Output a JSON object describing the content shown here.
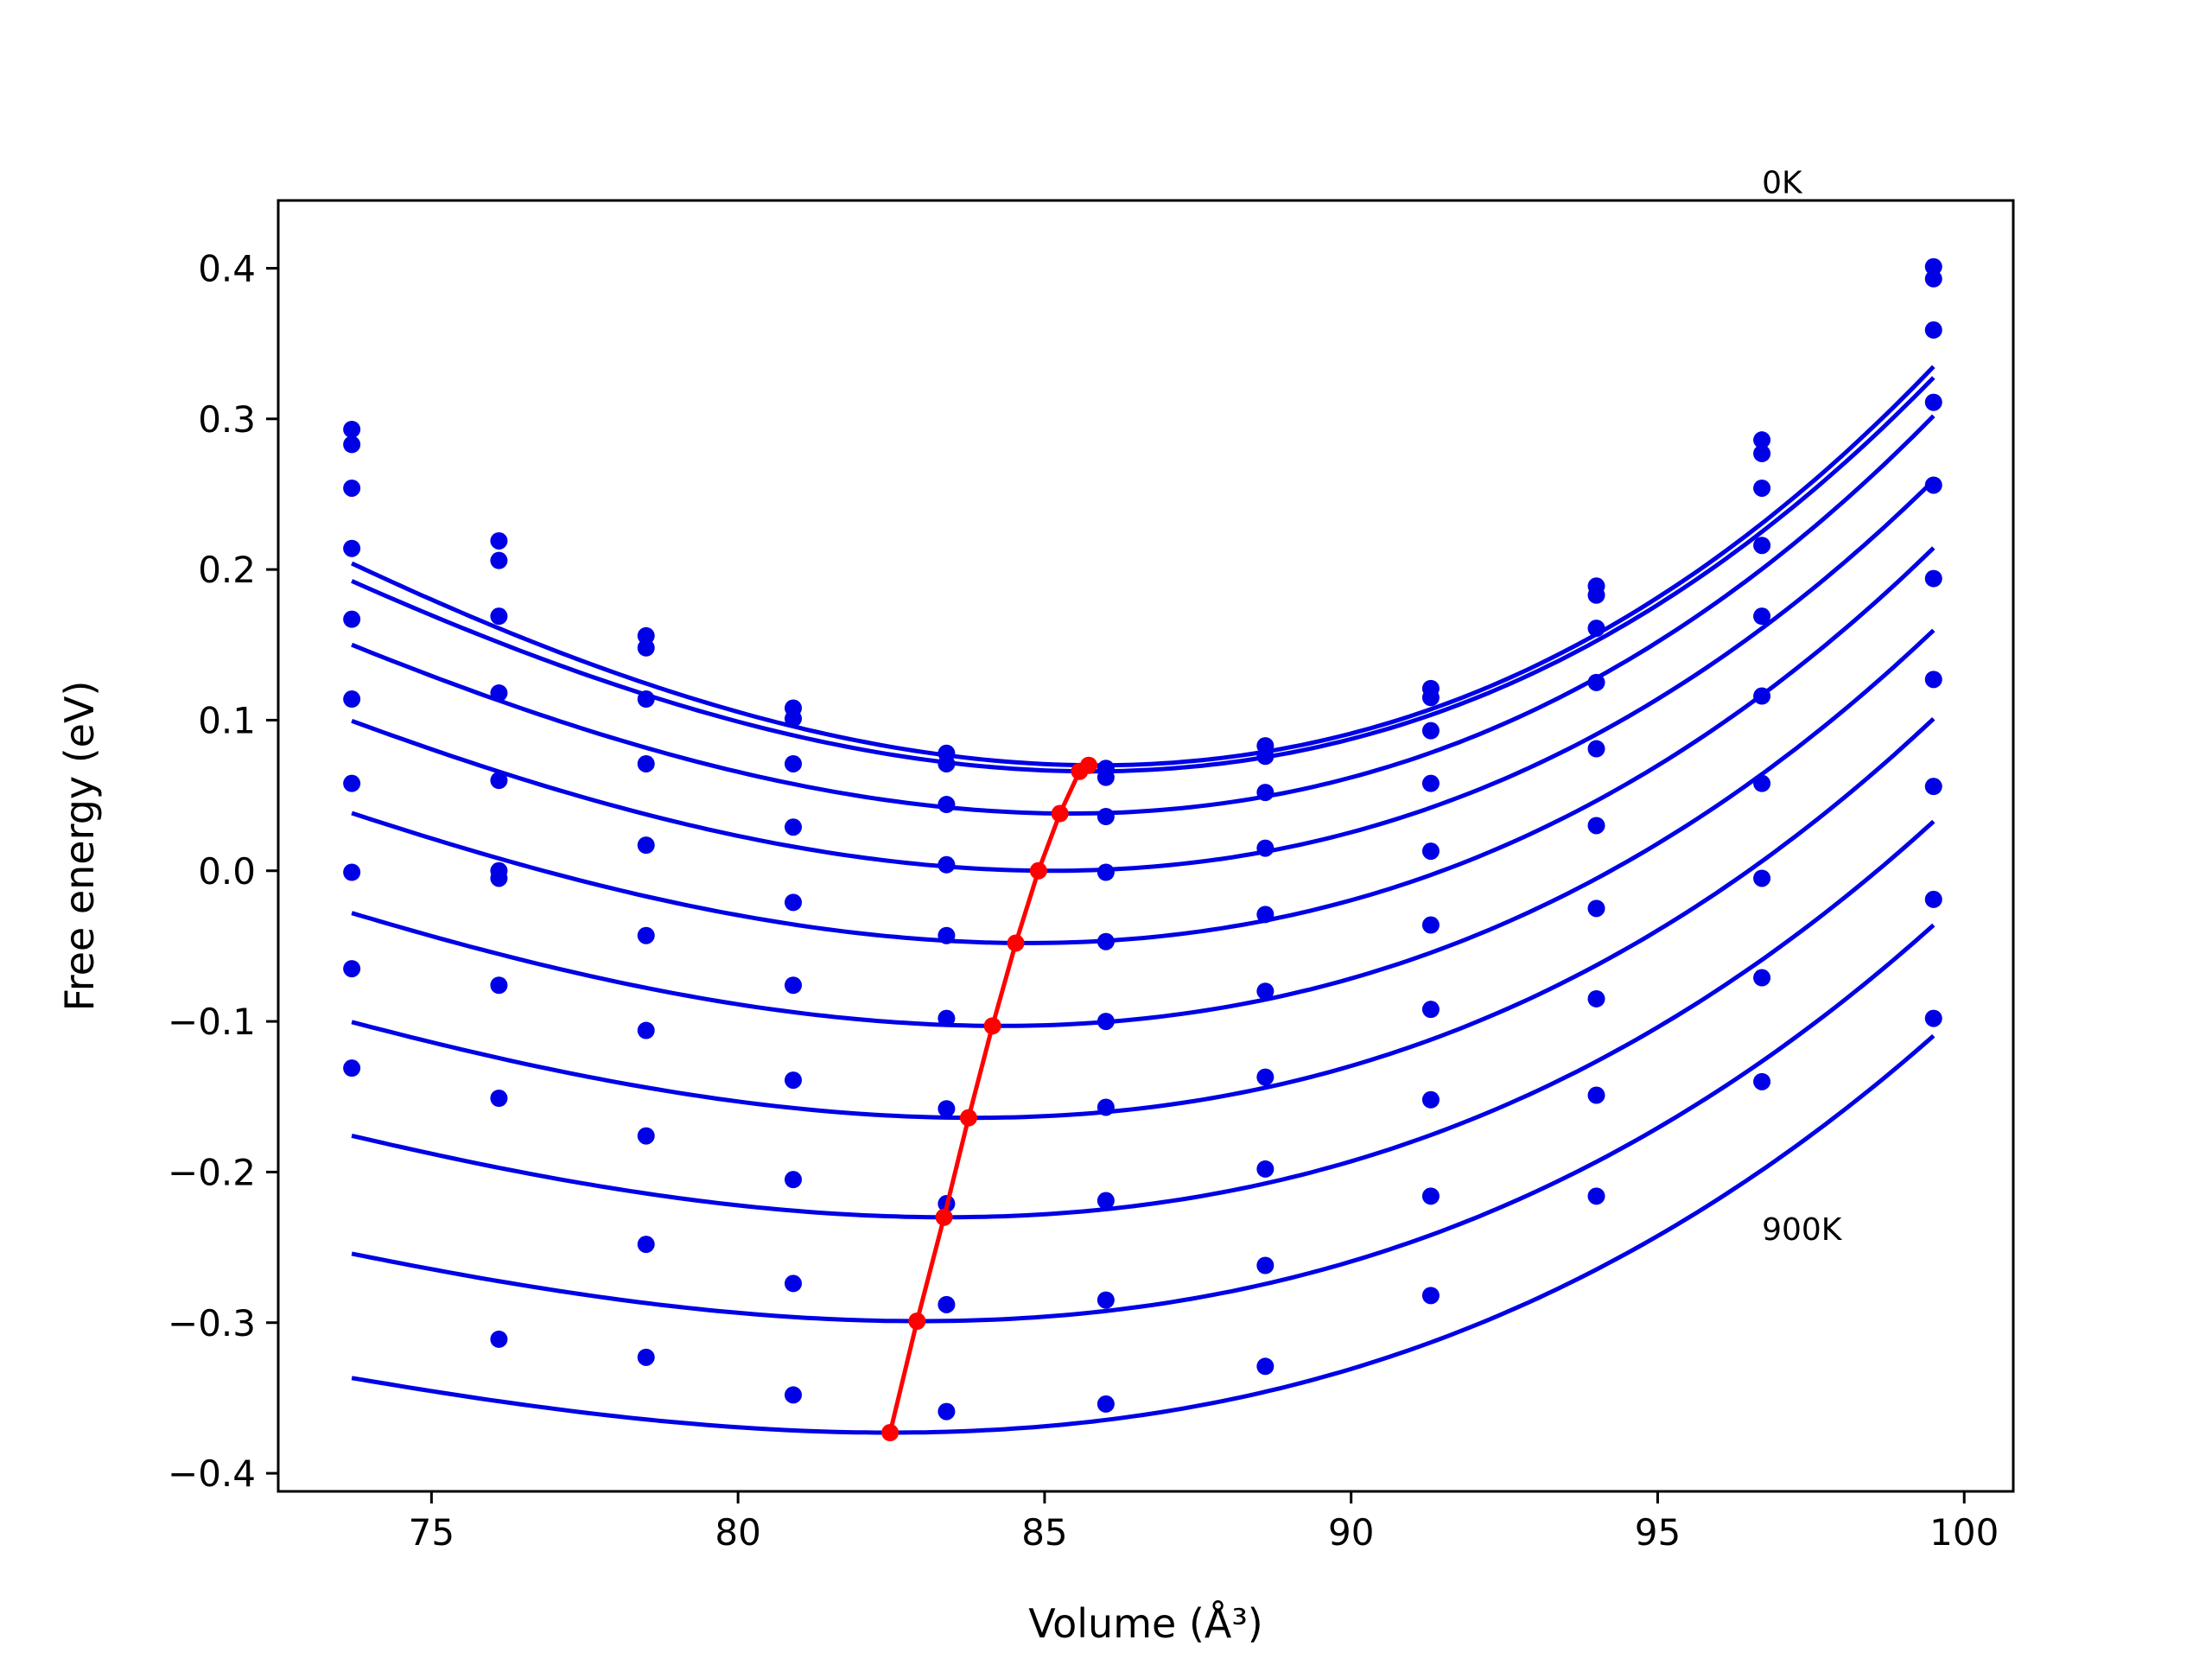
{
  "chart_data": {
    "type": "line",
    "xlabel": "Volume (Å³)",
    "ylabel": "Free energy (eV)",
    "xlim": [
      72.5,
      100.8
    ],
    "ylim": [
      -0.412,
      0.445
    ],
    "xticks": [
      75,
      80,
      85,
      90,
      95,
      100
    ],
    "xtick_labels": [
      "75",
      "80",
      "85",
      "90",
      "95",
      "100"
    ],
    "yticks": [
      0.4,
      0.3,
      0.2,
      0.1,
      0.0,
      -0.1,
      -0.2,
      -0.3,
      -0.4
    ],
    "ytick_labels": [
      "0.4",
      "0.3",
      "0.2",
      "0.1",
      "0.0",
      "−0.1",
      "−0.2",
      "−0.3",
      "−0.4"
    ],
    "grid": false,
    "legend": "none",
    "annotations": [
      {
        "text": "0K",
        "x": 96.7,
        "y": 0.45
      },
      {
        "text": "900K",
        "x": 96.7,
        "y": -0.245
      }
    ],
    "colors": {
      "curves": "#0000e6",
      "points": "#0000e6",
      "minima": "#ff0000"
    },
    "volumes": [
      73.7,
      76.1,
      78.5,
      80.9,
      83.4,
      86.0,
      88.6,
      91.3,
      94.0,
      96.7,
      99.5
    ],
    "series": [
      {
        "curve": [
          0.07,
          85.86,
          0.00115,
          2e-05
        ],
        "points": [
          0.293,
          0.219,
          0.156,
          0.108,
          0.078,
          0.068,
          0.083,
          0.121,
          0.189,
          0.286,
          0.401
        ]
      },
      {
        "curve": [
          0.066,
          85.76,
          0.00111,
          2e-05
        ],
        "points": [
          0.283,
          0.206,
          0.148,
          0.101,
          0.071,
          0.062,
          0.076,
          0.115,
          0.183,
          0.277,
          0.393
        ]
      },
      {
        "curve": [
          0.038,
          85.42,
          0.00105,
          2e-05
        ],
        "points": [
          0.254,
          0.169,
          0.114,
          0.071,
          0.044,
          0.036,
          0.052,
          0.093,
          0.161,
          0.254,
          0.359
        ]
      },
      {
        "curve": [
          0.0,
          85.12,
          0.00098,
          1.9e-05
        ],
        "points": [
          0.214,
          0.118,
          0.071,
          0.029,
          0.004,
          -0.001,
          0.015,
          0.058,
          0.125,
          0.216,
          0.311
        ]
      },
      {
        "curve": [
          -0.048,
          84.72,
          0.00092,
          1.9e-05
        ],
        "points": [
          0.167,
          0.06,
          0.017,
          -0.021,
          -0.043,
          -0.047,
          -0.029,
          0.013,
          0.081,
          0.169,
          0.256
        ]
      },
      {
        "curve": [
          -0.103,
          84.28,
          0.00086,
          1.8e-05
        ],
        "points": [
          0.114,
          0.0,
          -0.043,
          -0.076,
          -0.098,
          -0.1,
          -0.08,
          -0.036,
          0.03,
          0.116,
          0.194
        ]
      },
      {
        "curve": [
          -0.164,
          83.85,
          0.0008,
          1.8e-05
        ],
        "points": [
          0.058,
          -0.005,
          -0.106,
          -0.139,
          -0.158,
          -0.157,
          -0.137,
          -0.092,
          -0.025,
          0.058,
          0.127
        ]
      },
      {
        "curve": [
          -0.23,
          83.4,
          0.00074,
          1.7e-05
        ],
        "points": [
          -0.001,
          -0.076,
          -0.176,
          -0.205,
          -0.221,
          -0.219,
          -0.198,
          -0.152,
          -0.085,
          -0.005,
          0.056
        ]
      },
      {
        "curve": [
          -0.299,
          82.96,
          0.00068,
          1.7e-05
        ],
        "points": [
          -0.065,
          -0.151,
          -0.248,
          -0.274,
          -0.288,
          -0.285,
          -0.262,
          -0.216,
          -0.149,
          -0.071,
          -0.019
        ]
      },
      {
        "curve": [
          -0.373,
          82.48,
          0.00062,
          1.7e-05
        ],
        "points": [
          -0.131,
          -0.311,
          -0.323,
          -0.348,
          -0.359,
          -0.354,
          -0.329,
          -0.282,
          -0.216,
          -0.14,
          -0.098
        ]
      }
    ],
    "minima": {
      "x": [
        85.72,
        85.57,
        85.25,
        84.9,
        84.53,
        84.15,
        83.76,
        83.36,
        82.92,
        82.48
      ],
      "y": [
        0.07,
        0.066,
        0.038,
        0.0,
        -0.048,
        -0.103,
        -0.164,
        -0.23,
        -0.299,
        -0.373
      ]
    }
  }
}
